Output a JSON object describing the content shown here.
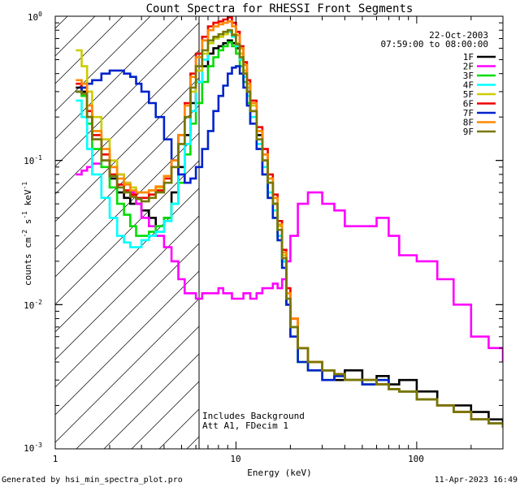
{
  "chart_data": {
    "type": "line",
    "title": "Count Spectra for RHESSI Front Segments",
    "xlabel": "Energy (keV)",
    "ylabel": "counts cm^-2 s^-1 keV^-1",
    "xscale": "log",
    "yscale": "log",
    "xlim": [
      1,
      300
    ],
    "ylim": [
      0.001,
      1.0
    ],
    "x_tick_labels": [
      "1",
      "10",
      "100"
    ],
    "y_tick_labels": [
      "10^-3",
      "10^-2",
      "10^-1",
      "10^0"
    ],
    "date": "22-Oct-2003",
    "time_range": "07:59:00 to 08:00:00",
    "annotation_lines": [
      "Includes Background",
      "Att A1, FDecim 1"
    ],
    "footer_left": "Generated by hsi_min_spectra_plot.pro",
    "footer_right": "11-Apr-2023 16:49",
    "hatch_region_kev": [
      1,
      6
    ],
    "series": [
      {
        "name": "1F",
        "color": "#000000",
        "x": [
          1.3,
          1.4,
          1.5,
          1.6,
          1.8,
          2.0,
          2.2,
          2.4,
          2.6,
          2.8,
          3.0,
          3.3,
          3.6,
          4.0,
          4.4,
          4.8,
          5.2,
          5.6,
          6.0,
          6.5,
          7.0,
          7.5,
          8.0,
          8.5,
          9.0,
          9.5,
          10.0,
          10.5,
          11.0,
          11.5,
          12.0,
          13.0,
          14.0,
          15.0,
          16.0,
          17.0,
          18.0,
          19.0,
          20.0,
          22.0,
          25.0,
          30.0,
          35.0,
          40.0,
          50.0,
          60.0,
          70.0,
          80.0,
          100.0,
          130.0,
          160.0,
          200.0,
          250.0,
          300.0
        ],
        "values": [
          0.32,
          0.3,
          0.2,
          0.14,
          0.1,
          0.075,
          0.06,
          0.055,
          0.05,
          0.05,
          0.045,
          0.04,
          0.035,
          0.04,
          0.06,
          0.09,
          0.15,
          0.25,
          0.35,
          0.45,
          0.55,
          0.6,
          0.62,
          0.65,
          0.68,
          0.65,
          0.6,
          0.5,
          0.4,
          0.3,
          0.22,
          0.15,
          0.1,
          0.07,
          0.05,
          0.03,
          0.02,
          0.01,
          0.007,
          0.005,
          0.004,
          0.0035,
          0.003,
          0.0035,
          0.003,
          0.0032,
          0.0028,
          0.003,
          0.0025,
          0.002,
          0.002,
          0.0018,
          0.0016,
          0.0015
        ]
      },
      {
        "name": "2F",
        "color": "#ff00ff",
        "x": [
          1.3,
          1.4,
          1.5,
          1.6,
          1.8,
          2.0,
          2.2,
          2.4,
          2.6,
          2.8,
          3.0,
          3.3,
          3.6,
          4.0,
          4.4,
          4.8,
          5.2,
          5.6,
          6.0,
          6.5,
          7.0,
          7.5,
          8.0,
          8.5,
          9.0,
          9.5,
          10.0,
          10.5,
          11.0,
          11.5,
          12.0,
          13.0,
          14.0,
          15.0,
          16.0,
          17.0,
          18.0,
          19.0,
          20.0,
          22.0,
          25.0,
          30.0,
          35.0,
          40.0,
          50.0,
          60.0,
          70.0,
          80.0,
          100.0,
          130.0,
          160.0,
          200.0,
          250.0,
          300.0
        ],
        "values": [
          0.08,
          0.085,
          0.09,
          0.095,
          0.1,
          0.09,
          0.08,
          0.07,
          0.06,
          0.05,
          0.04,
          0.035,
          0.03,
          0.025,
          0.02,
          0.015,
          0.012,
          0.012,
          0.011,
          0.012,
          0.012,
          0.012,
          0.013,
          0.012,
          0.012,
          0.011,
          0.011,
          0.011,
          0.012,
          0.012,
          0.011,
          0.012,
          0.013,
          0.013,
          0.014,
          0.013,
          0.015,
          0.02,
          0.03,
          0.05,
          0.06,
          0.05,
          0.045,
          0.035,
          0.035,
          0.04,
          0.03,
          0.022,
          0.02,
          0.015,
          0.01,
          0.006,
          0.005,
          0.004
        ]
      },
      {
        "name": "3F",
        "color": "#00dd00",
        "x": [
          1.3,
          1.4,
          1.5,
          1.6,
          1.8,
          2.0,
          2.2,
          2.4,
          2.6,
          2.8,
          3.0,
          3.3,
          3.6,
          4.0,
          4.4,
          4.8,
          5.2,
          5.6,
          6.0,
          6.5,
          7.0,
          7.5,
          8.0,
          8.5,
          9.0,
          9.5,
          10.0,
          10.5,
          11.0,
          11.5,
          12.0,
          13.0,
          14.0,
          15.0,
          16.0,
          17.0,
          18.0,
          19.0,
          20.0,
          22.0,
          25.0,
          30.0,
          35.0,
          40.0,
          50.0,
          60.0,
          70.0,
          80.0,
          100.0,
          130.0,
          160.0,
          200.0,
          250.0,
          300.0
        ],
        "values": [
          0.3,
          0.28,
          0.18,
          0.12,
          0.09,
          0.065,
          0.05,
          0.042,
          0.035,
          0.03,
          0.03,
          0.032,
          0.035,
          0.04,
          0.05,
          0.07,
          0.11,
          0.18,
          0.25,
          0.35,
          0.45,
          0.52,
          0.58,
          0.62,
          0.66,
          0.62,
          0.55,
          0.45,
          0.35,
          0.25,
          0.18,
          0.12,
          0.08,
          0.055,
          0.04,
          0.028,
          0.018,
          0.01,
          0.006,
          0.004,
          0.0035,
          0.003,
          0.0032,
          0.003,
          0.0028,
          0.003,
          0.0026,
          0.0025,
          0.0022,
          0.002,
          0.0018,
          0.0016,
          0.0015,
          0.0014
        ]
      },
      {
        "name": "4F",
        "color": "#00ffff",
        "x": [
          1.3,
          1.4,
          1.5,
          1.6,
          1.8,
          2.0,
          2.2,
          2.4,
          2.6,
          2.8,
          3.0,
          3.3,
          3.6,
          4.0,
          4.4,
          4.8,
          5.2,
          5.6,
          6.0,
          6.5,
          7.0,
          7.5,
          8.0,
          8.5,
          9.0,
          9.5,
          10.0,
          10.5,
          11.0,
          11.5,
          12.0,
          13.0,
          14.0,
          15.0,
          16.0,
          17.0,
          18.0,
          19.0,
          20.0,
          22.0,
          25.0,
          30.0,
          35.0,
          40.0,
          50.0,
          60.0,
          70.0,
          80.0,
          100.0,
          130.0,
          160.0,
          200.0,
          250.0,
          300.0
        ],
        "values": [
          0.26,
          0.2,
          0.12,
          0.08,
          0.055,
          0.04,
          0.03,
          0.027,
          0.025,
          0.025,
          0.028,
          0.03,
          0.032,
          0.038,
          0.05,
          0.08,
          0.13,
          0.22,
          0.35,
          0.5,
          0.65,
          0.7,
          0.72,
          0.75,
          0.78,
          0.72,
          0.62,
          0.5,
          0.38,
          0.28,
          0.2,
          0.13,
          0.09,
          0.06,
          0.045,
          0.03,
          0.02,
          0.011,
          0.007,
          0.005,
          0.004,
          0.0035,
          0.0033,
          0.003,
          0.003,
          0.0028,
          0.0026,
          0.0025,
          0.0022,
          0.002,
          0.0018,
          0.0016,
          0.0015,
          0.0014
        ]
      },
      {
        "name": "5F",
        "color": "#cccc00",
        "x": [
          1.3,
          1.4,
          1.5,
          1.6,
          1.8,
          2.0,
          2.2,
          2.4,
          2.6,
          2.8,
          3.0,
          3.3,
          3.6,
          4.0,
          4.4,
          4.8,
          5.2,
          5.6,
          6.0,
          6.5,
          7.0,
          7.5,
          8.0,
          8.5,
          9.0,
          9.5,
          10.0,
          10.5,
          11.0,
          11.5,
          12.0,
          13.0,
          14.0,
          15.0,
          16.0,
          17.0,
          18.0,
          19.0,
          20.0,
          22.0,
          25.0,
          30.0,
          35.0,
          40.0,
          50.0,
          60.0,
          70.0,
          80.0,
          100.0,
          130.0,
          160.0,
          200.0,
          250.0,
          300.0
        ],
        "values": [
          0.58,
          0.45,
          0.3,
          0.2,
          0.14,
          0.1,
          0.08,
          0.07,
          0.065,
          0.06,
          0.06,
          0.062,
          0.065,
          0.07,
          0.09,
          0.13,
          0.2,
          0.3,
          0.42,
          0.55,
          0.65,
          0.7,
          0.72,
          0.75,
          0.8,
          0.75,
          0.65,
          0.55,
          0.42,
          0.32,
          0.24,
          0.16,
          0.11,
          0.075,
          0.055,
          0.035,
          0.022,
          0.012,
          0.008,
          0.005,
          0.004,
          0.0035,
          0.0033,
          0.003,
          0.003,
          0.0028,
          0.0026,
          0.0025,
          0.0022,
          0.002,
          0.0018,
          0.0016,
          0.0015,
          0.0014
        ]
      },
      {
        "name": "6F",
        "color": "#ee0000",
        "x": [
          1.3,
          1.4,
          1.5,
          1.6,
          1.8,
          2.0,
          2.2,
          2.4,
          2.6,
          2.8,
          3.0,
          3.3,
          3.6,
          4.0,
          4.4,
          4.8,
          5.2,
          5.6,
          6.0,
          6.5,
          7.0,
          7.5,
          8.0,
          8.5,
          9.0,
          9.5,
          10.0,
          10.5,
          11.0,
          11.5,
          12.0,
          13.0,
          14.0,
          15.0,
          16.0,
          17.0,
          18.0,
          19.0,
          20.0,
          22.0,
          25.0,
          30.0,
          35.0,
          40.0,
          50.0,
          60.0,
          70.0,
          80.0,
          100.0,
          130.0,
          160.0,
          200.0,
          250.0,
          300.0
        ],
        "values": [
          0.34,
          0.32,
          0.22,
          0.15,
          0.11,
          0.08,
          0.068,
          0.062,
          0.058,
          0.055,
          0.055,
          0.058,
          0.062,
          0.075,
          0.1,
          0.15,
          0.25,
          0.4,
          0.55,
          0.72,
          0.85,
          0.9,
          0.92,
          0.95,
          0.98,
          0.9,
          0.78,
          0.62,
          0.48,
          0.36,
          0.26,
          0.17,
          0.12,
          0.08,
          0.058,
          0.038,
          0.024,
          0.013,
          0.008,
          0.005,
          0.004,
          0.0035,
          0.0033,
          0.003,
          0.003,
          0.0028,
          0.0026,
          0.0025,
          0.0022,
          0.002,
          0.0018,
          0.0016,
          0.0015,
          0.0014
        ]
      },
      {
        "name": "7F",
        "color": "#0022cc",
        "x": [
          1.3,
          1.4,
          1.5,
          1.6,
          1.8,
          2.0,
          2.2,
          2.4,
          2.6,
          2.8,
          3.0,
          3.3,
          3.6,
          4.0,
          4.4,
          4.8,
          5.2,
          5.6,
          6.0,
          6.5,
          7.0,
          7.5,
          8.0,
          8.5,
          9.0,
          9.5,
          10.0,
          10.5,
          11.0,
          11.5,
          12.0,
          13.0,
          14.0,
          15.0,
          16.0,
          17.0,
          18.0,
          19.0,
          20.0,
          22.0,
          25.0,
          30.0,
          35.0,
          40.0,
          50.0,
          60.0,
          70.0,
          80.0,
          100.0,
          130.0,
          160.0,
          200.0,
          250.0,
          300.0
        ],
        "values": [
          0.3,
          0.32,
          0.34,
          0.36,
          0.4,
          0.42,
          0.42,
          0.4,
          0.38,
          0.34,
          0.3,
          0.25,
          0.2,
          0.14,
          0.1,
          0.08,
          0.07,
          0.075,
          0.09,
          0.12,
          0.16,
          0.22,
          0.28,
          0.33,
          0.4,
          0.44,
          0.45,
          0.4,
          0.32,
          0.24,
          0.18,
          0.12,
          0.08,
          0.055,
          0.04,
          0.028,
          0.018,
          0.01,
          0.006,
          0.004,
          0.0035,
          0.003,
          0.0032,
          0.003,
          0.0028,
          0.003,
          0.0026,
          0.0025,
          0.0022,
          0.002,
          0.0018,
          0.0016,
          0.0015,
          0.0014
        ]
      },
      {
        "name": "8F",
        "color": "#ff8800",
        "x": [
          1.3,
          1.4,
          1.5,
          1.6,
          1.8,
          2.0,
          2.2,
          2.4,
          2.6,
          2.8,
          3.0,
          3.3,
          3.6,
          4.0,
          4.4,
          4.8,
          5.2,
          5.6,
          6.0,
          6.5,
          7.0,
          7.5,
          8.0,
          8.5,
          9.0,
          9.5,
          10.0,
          10.5,
          11.0,
          11.5,
          12.0,
          13.0,
          14.0,
          15.0,
          16.0,
          17.0,
          18.0,
          19.0,
          20.0,
          22.0,
          25.0,
          30.0,
          35.0,
          40.0,
          50.0,
          60.0,
          70.0,
          80.0,
          100.0,
          130.0,
          160.0,
          200.0,
          250.0,
          300.0
        ],
        "values": [
          0.36,
          0.34,
          0.24,
          0.16,
          0.12,
          0.09,
          0.075,
          0.068,
          0.062,
          0.06,
          0.06,
          0.062,
          0.066,
          0.078,
          0.1,
          0.15,
          0.24,
          0.38,
          0.52,
          0.68,
          0.8,
          0.85,
          0.88,
          0.9,
          0.92,
          0.85,
          0.74,
          0.6,
          0.46,
          0.34,
          0.25,
          0.16,
          0.11,
          0.075,
          0.055,
          0.036,
          0.023,
          0.012,
          0.008,
          0.005,
          0.004,
          0.0035,
          0.0033,
          0.003,
          0.003,
          0.0028,
          0.0026,
          0.0025,
          0.0022,
          0.002,
          0.0018,
          0.0016,
          0.0015,
          0.0014
        ]
      },
      {
        "name": "9F",
        "color": "#777700",
        "x": [
          1.3,
          1.4,
          1.5,
          1.6,
          1.8,
          2.0,
          2.2,
          2.4,
          2.6,
          2.8,
          3.0,
          3.3,
          3.6,
          4.0,
          4.4,
          4.8,
          5.2,
          5.6,
          6.0,
          6.5,
          7.0,
          7.5,
          8.0,
          8.5,
          9.0,
          9.5,
          10.0,
          10.5,
          11.0,
          11.5,
          12.0,
          13.0,
          14.0,
          15.0,
          16.0,
          17.0,
          18.0,
          19.0,
          20.0,
          22.0,
          25.0,
          30.0,
          35.0,
          40.0,
          50.0,
          60.0,
          70.0,
          80.0,
          100.0,
          130.0,
          160.0,
          200.0,
          250.0,
          300.0
        ],
        "values": [
          0.3,
          0.29,
          0.2,
          0.14,
          0.1,
          0.078,
          0.065,
          0.06,
          0.056,
          0.054,
          0.052,
          0.055,
          0.06,
          0.07,
          0.09,
          0.13,
          0.2,
          0.32,
          0.45,
          0.58,
          0.68,
          0.72,
          0.75,
          0.78,
          0.8,
          0.74,
          0.64,
          0.52,
          0.4,
          0.3,
          0.22,
          0.14,
          0.1,
          0.07,
          0.05,
          0.033,
          0.021,
          0.011,
          0.007,
          0.005,
          0.004,
          0.0035,
          0.0033,
          0.003,
          0.003,
          0.0028,
          0.0026,
          0.0025,
          0.0022,
          0.002,
          0.0018,
          0.0016,
          0.0015,
          0.0014
        ]
      }
    ]
  }
}
